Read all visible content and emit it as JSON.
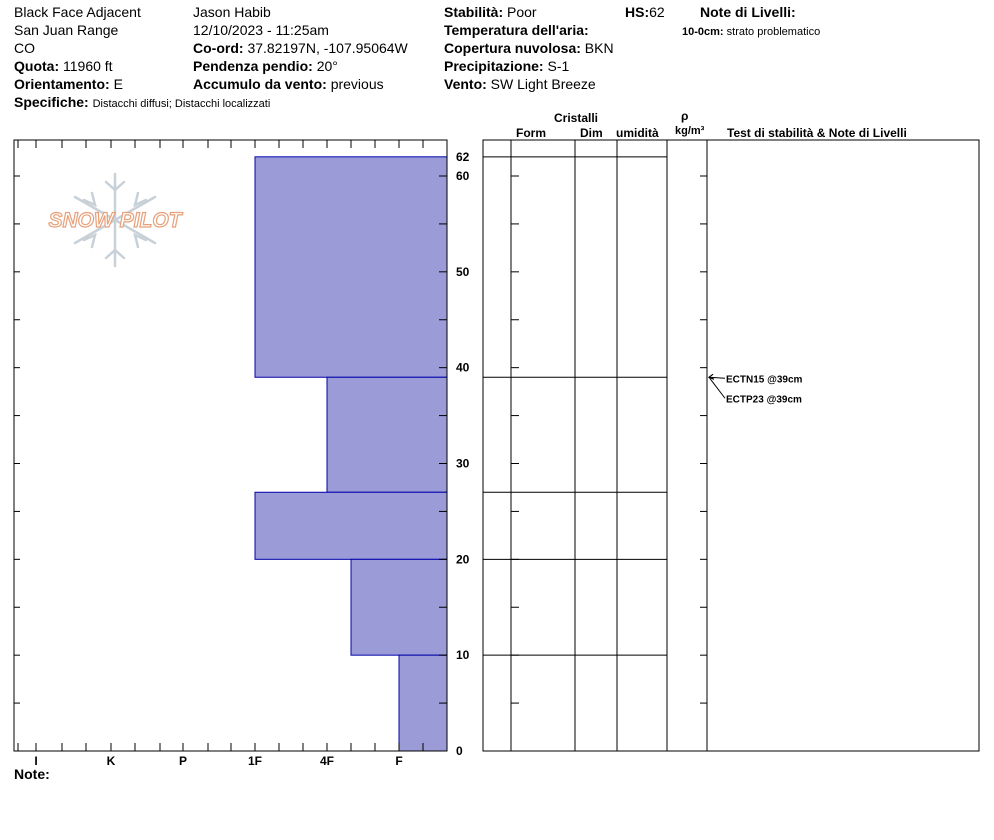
{
  "header": {
    "location": "Black Face Adjacent",
    "range": "San Juan Range",
    "state": "CO",
    "elevation_label": "Quota:",
    "elevation_value": "11960 ft",
    "aspect_label": "Orientamento:",
    "aspect_value": "E",
    "specifics_label": "Specifiche:",
    "specifics_value": "Distacchi diffusi;  Distacchi localizzati",
    "observer": "Jason Habib",
    "datetime": "12/10/2023 - 11:25am",
    "coord_label": "Co-ord:",
    "coord_value": "37.82197N, -107.95064W",
    "slope_label": "Pendenza pendio:",
    "slope_value": "20°",
    "wind_loading_label": "Accumulo da vento:",
    "wind_loading_value": "previous",
    "stability_label": "Stabilità:",
    "stability_value": "Poor",
    "hs_label": "HS:",
    "hs_value": "62",
    "air_temp_label": "Temperatura dell'aria:",
    "air_temp_value": "",
    "cloud_label": "Copertura nuvolosa:",
    "cloud_value": "BKN",
    "precip_label": "Precipitazione:",
    "precip_value": "S-1",
    "wind_label": "Vento:",
    "wind_value": "SW Light Breeze",
    "layer_notes_label": "Note di Livelli:",
    "layer_note_depth": "10-0cm:",
    "layer_note_text": "strato problematico"
  },
  "logo": {
    "text": "SNOW PILOT",
    "color": "#e8a07a"
  },
  "columns": {
    "crystals": "Cristalli",
    "form": "Form",
    "size": "Dim",
    "moisture": "umidità",
    "density_symbol": "ρ",
    "density_unit": "kg/m³",
    "tests": "Test di stabilità & Note di Livelli"
  },
  "notes_label": "Note:",
  "colors": {
    "hardness_fill": "#9b9bd7",
    "hardness_stroke": "#0000aa",
    "test_arrow": "#000000"
  },
  "chart_data": {
    "type": "bar",
    "title": "",
    "y_axis": {
      "min": 0,
      "max": 62,
      "ticks": [
        0,
        10,
        20,
        30,
        40,
        50,
        60,
        62
      ]
    },
    "hardness_scale": [
      "I",
      "K",
      "P",
      "1F",
      "4F",
      "F"
    ],
    "layers": [
      {
        "bottom": 39,
        "top": 62,
        "hardness": "1F"
      },
      {
        "bottom": 27,
        "top": 39,
        "hardness": "4F-"
      },
      {
        "bottom": 20,
        "top": 27,
        "hardness": "1F"
      },
      {
        "bottom": 10,
        "top": 20,
        "hardness": "4F+"
      },
      {
        "bottom": 0,
        "top": 10,
        "hardness": "F"
      }
    ],
    "layer_boundaries": [
      62,
      39,
      27,
      20,
      10
    ],
    "tests": [
      {
        "label": "ECTN15 @39cm",
        "depth": 39
      },
      {
        "label": "ECTP23 @39cm",
        "depth": 39
      }
    ]
  }
}
